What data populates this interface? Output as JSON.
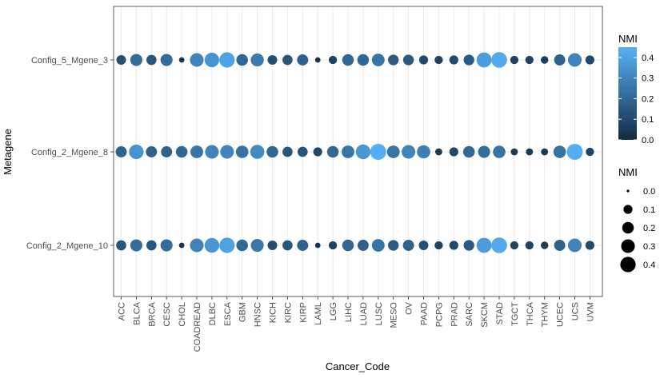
{
  "chart_data": {
    "type": "scatter",
    "xlabel": "Cancer_Code",
    "ylabel": "Metagene",
    "categories": [
      "ACC",
      "BLCA",
      "BRCA",
      "CESC",
      "CHOL",
      "COADREAD",
      "DLBC",
      "ESCA",
      "GBM",
      "HNSC",
      "KICH",
      "KIRC",
      "KIRP",
      "LAML",
      "LGG",
      "LIHC",
      "LUAD",
      "LUSC",
      "MESO",
      "OV",
      "PAAD",
      "PCPG",
      "PRAD",
      "SARC",
      "SKCM",
      "STAD",
      "TGCT",
      "THCA",
      "THYM",
      "UCEC",
      "UCS",
      "UVM"
    ],
    "y_categories": [
      "Config_2_Mgene_10",
      "Config_2_Mgene_8",
      "Config_5_Mgene_3"
    ],
    "series": [
      {
        "name": "Config_5_Mgene_3",
        "values": [
          0.12,
          0.22,
          0.14,
          0.22,
          0.02,
          0.3,
          0.35,
          0.4,
          0.2,
          0.27,
          0.12,
          0.14,
          0.18,
          0.02,
          0.08,
          0.2,
          0.2,
          0.25,
          0.16,
          0.16,
          0.1,
          0.08,
          0.1,
          0.16,
          0.38,
          0.42,
          0.08,
          0.08,
          0.06,
          0.18,
          0.3,
          0.1
        ]
      },
      {
        "name": "Config_2_Mgene_8",
        "values": [
          0.18,
          0.35,
          0.18,
          0.18,
          0.2,
          0.25,
          0.3,
          0.3,
          0.24,
          0.32,
          0.2,
          0.14,
          0.14,
          0.1,
          0.2,
          0.25,
          0.36,
          0.44,
          0.25,
          0.3,
          0.28,
          0.05,
          0.1,
          0.2,
          0.22,
          0.24,
          0.05,
          0.05,
          0.05,
          0.24,
          0.44,
          0.08
        ]
      },
      {
        "name": "Config_2_Mgene_10",
        "values": [
          0.14,
          0.22,
          0.14,
          0.22,
          0.02,
          0.3,
          0.36,
          0.4,
          0.2,
          0.26,
          0.12,
          0.14,
          0.18,
          0.02,
          0.08,
          0.2,
          0.18,
          0.25,
          0.16,
          0.18,
          0.12,
          0.08,
          0.1,
          0.16,
          0.38,
          0.42,
          0.08,
          0.08,
          0.06,
          0.18,
          0.3,
          0.1
        ]
      }
    ],
    "color_scale": {
      "low": "#132b43",
      "high": "#56b1f7"
    },
    "legend_color": {
      "title": "NMI",
      "ticks": [
        "0.0",
        "0.1",
        "0.2",
        "0.3",
        "0.4"
      ],
      "min": 0,
      "max": 0.45
    },
    "legend_size": {
      "title": "NMI",
      "values": [
        0.0,
        0.1,
        0.2,
        0.3,
        0.4
      ],
      "labels": [
        "0.0",
        "0.1",
        "0.2",
        "0.3",
        "0.4"
      ]
    },
    "legend_position": "right",
    "grid": true
  }
}
